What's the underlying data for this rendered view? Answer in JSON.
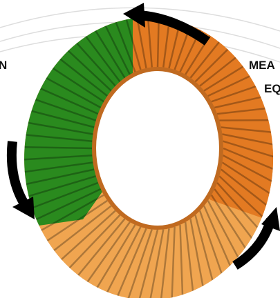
{
  "labels": {
    "left": "N",
    "right_top": "MEA",
    "right_bottom": "EQ"
  }
}
